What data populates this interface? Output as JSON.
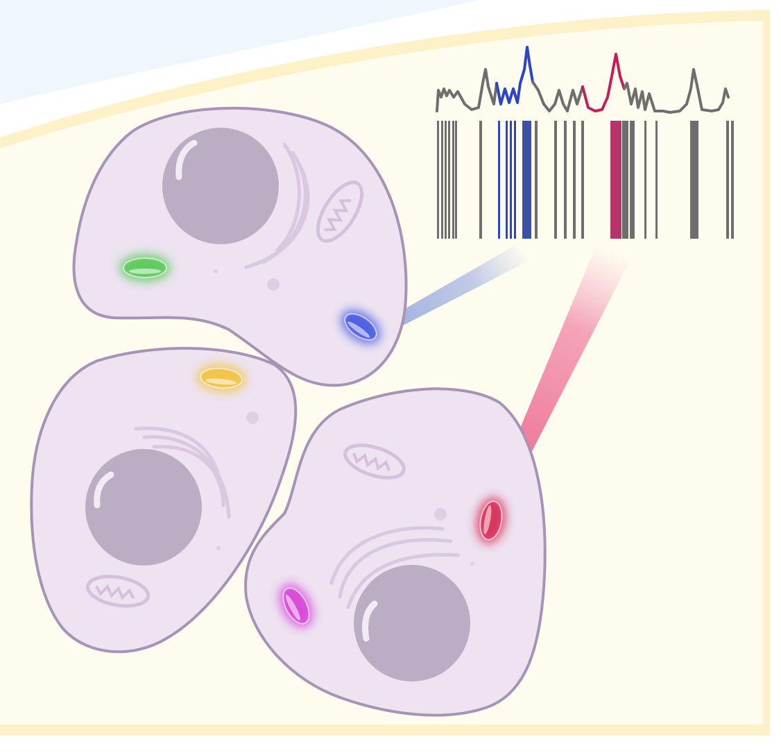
{
  "colors": {
    "page_bg": "#ffffff",
    "dish_fill": "#fefcef",
    "dish_rim": "#fdf1c8",
    "sky_fill": "#eef8fc",
    "cell_fill": "#ede3f1",
    "cell_stroke": "#a893b8",
    "nucleus_fill": "#bbaec4",
    "organelle_stroke": "#d9c8e0",
    "spectrum_gray": "#6e6e6e",
    "spectrum_blue": "#2a45c8",
    "spectrum_pink": "#c41e5a",
    "barcode_blue": "#3c52a8",
    "barcode_pink": "#b8336a"
  },
  "cells": [
    {
      "name": "cell-top-left"
    },
    {
      "name": "cell-bottom-left"
    },
    {
      "name": "cell-bottom-right"
    }
  ],
  "tags": [
    {
      "name": "green-tag",
      "color": "#4fc84f"
    },
    {
      "name": "blue-tag",
      "color": "#3d52e0"
    },
    {
      "name": "yellow-tag",
      "color": "#f2c234"
    },
    {
      "name": "magenta-tag",
      "color": "#d63ad6"
    },
    {
      "name": "red-tag",
      "color": "#d8214e"
    }
  ],
  "barcode": {
    "highlighted": [
      "blue",
      "pink"
    ]
  }
}
